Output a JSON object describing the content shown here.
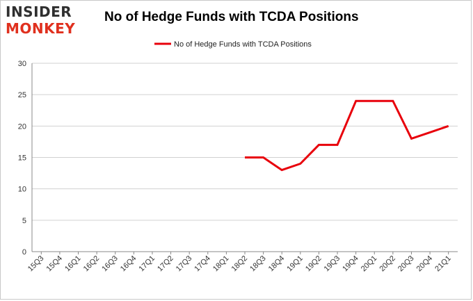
{
  "logo": {
    "line1": "INSIDER",
    "line2": "MONKEY"
  },
  "colors": {
    "line": "#e8000b",
    "grid": "#d0d0d0",
    "axis": "#888888",
    "logo_red": "#e0301e"
  },
  "chart_data": {
    "type": "line",
    "title": "No of Hedge Funds with TCDA Positions",
    "xlabel": "",
    "ylabel": "",
    "categories": [
      "15Q3",
      "15Q4",
      "16Q1",
      "16Q2",
      "16Q3",
      "16Q4",
      "17Q1",
      "17Q2",
      "17Q3",
      "17Q4",
      "18Q1",
      "18Q2",
      "18Q3",
      "18Q4",
      "19Q1",
      "19Q2",
      "19Q3",
      "19Q4",
      "20Q1",
      "20Q2",
      "20Q3",
      "20Q4",
      "21Q1"
    ],
    "series": [
      {
        "name": "No of Hedge Funds with TCDA Positions",
        "values": [
          null,
          null,
          null,
          null,
          null,
          null,
          null,
          null,
          null,
          null,
          null,
          15,
          15,
          13,
          14,
          17,
          17,
          24,
          24,
          24,
          18,
          19,
          20
        ]
      }
    ],
    "ylim": [
      0,
      30
    ],
    "yticks": [
      0,
      5,
      10,
      15,
      20,
      25,
      30
    ],
    "grid": true,
    "legend_position": "top-center"
  }
}
